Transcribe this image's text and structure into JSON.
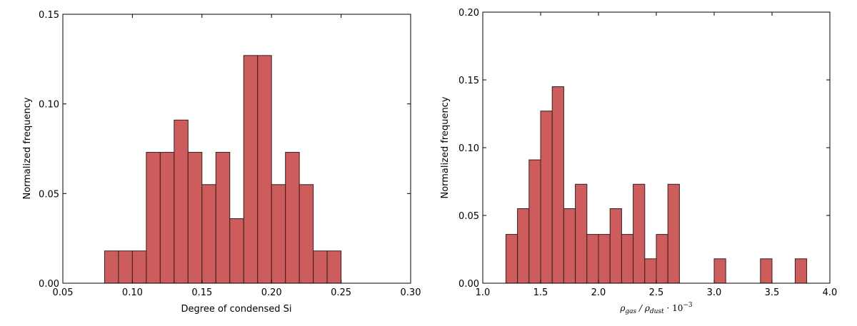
{
  "colors": {
    "bar_fill": "#cd5c5c",
    "bar_edge": "#3a1f1f"
  },
  "chart_data": [
    {
      "type": "bar",
      "title": "",
      "xlabel": "Degree of condensed Si",
      "ylabel": "Normalized frequency",
      "xlim": [
        0.05,
        0.3
      ],
      "ylim": [
        0.0,
        0.15
      ],
      "xticks": [
        "0.05",
        "0.10",
        "0.15",
        "0.20",
        "0.25",
        "0.30"
      ],
      "yticks": [
        "0.00",
        "0.05",
        "0.10",
        "0.15"
      ],
      "bin_width": 0.01,
      "bins": [
        {
          "x0": 0.08,
          "value": 0.018
        },
        {
          "x0": 0.09,
          "value": 0.018
        },
        {
          "x0": 0.1,
          "value": 0.018
        },
        {
          "x0": 0.11,
          "value": 0.073
        },
        {
          "x0": 0.12,
          "value": 0.073
        },
        {
          "x0": 0.13,
          "value": 0.091
        },
        {
          "x0": 0.14,
          "value": 0.073
        },
        {
          "x0": 0.15,
          "value": 0.055
        },
        {
          "x0": 0.16,
          "value": 0.073
        },
        {
          "x0": 0.17,
          "value": 0.036
        },
        {
          "x0": 0.18,
          "value": 0.127
        },
        {
          "x0": 0.19,
          "value": 0.127
        },
        {
          "x0": 0.2,
          "value": 0.055
        },
        {
          "x0": 0.21,
          "value": 0.073
        },
        {
          "x0": 0.22,
          "value": 0.055
        },
        {
          "x0": 0.23,
          "value": 0.018
        },
        {
          "x0": 0.24,
          "value": 0.018
        }
      ]
    },
    {
      "type": "bar",
      "title": "",
      "xlabel_main": "ρ",
      "xlabel_sub1": "gas",
      "xlabel_mid": " / ρ",
      "xlabel_sub2": "dust",
      "xlabel_tail": " · 10",
      "xlabel_exp": "−3",
      "ylabel": "Normalized frequency",
      "xlim": [
        1.0,
        4.0
      ],
      "ylim": [
        0.0,
        0.2
      ],
      "xticks": [
        "1.0",
        "1.5",
        "2.0",
        "2.5",
        "3.0",
        "3.5",
        "4.0"
      ],
      "yticks": [
        "0.00",
        "0.05",
        "0.10",
        "0.15",
        "0.20"
      ],
      "bin_width": 0.1,
      "bins": [
        {
          "x0": 1.2,
          "value": 0.036
        },
        {
          "x0": 1.3,
          "value": 0.055
        },
        {
          "x0": 1.4,
          "value": 0.091
        },
        {
          "x0": 1.5,
          "value": 0.127
        },
        {
          "x0": 1.6,
          "value": 0.145
        },
        {
          "x0": 1.7,
          "value": 0.055
        },
        {
          "x0": 1.8,
          "value": 0.073
        },
        {
          "x0": 1.9,
          "value": 0.036
        },
        {
          "x0": 2.0,
          "value": 0.036
        },
        {
          "x0": 2.1,
          "value": 0.055
        },
        {
          "x0": 2.2,
          "value": 0.036
        },
        {
          "x0": 2.3,
          "value": 0.073
        },
        {
          "x0": 2.4,
          "value": 0.018
        },
        {
          "x0": 2.5,
          "value": 0.036
        },
        {
          "x0": 2.6,
          "value": 0.073
        },
        {
          "x0": 3.0,
          "value": 0.018
        },
        {
          "x0": 3.4,
          "value": 0.018
        },
        {
          "x0": 3.7,
          "value": 0.018
        }
      ]
    }
  ]
}
